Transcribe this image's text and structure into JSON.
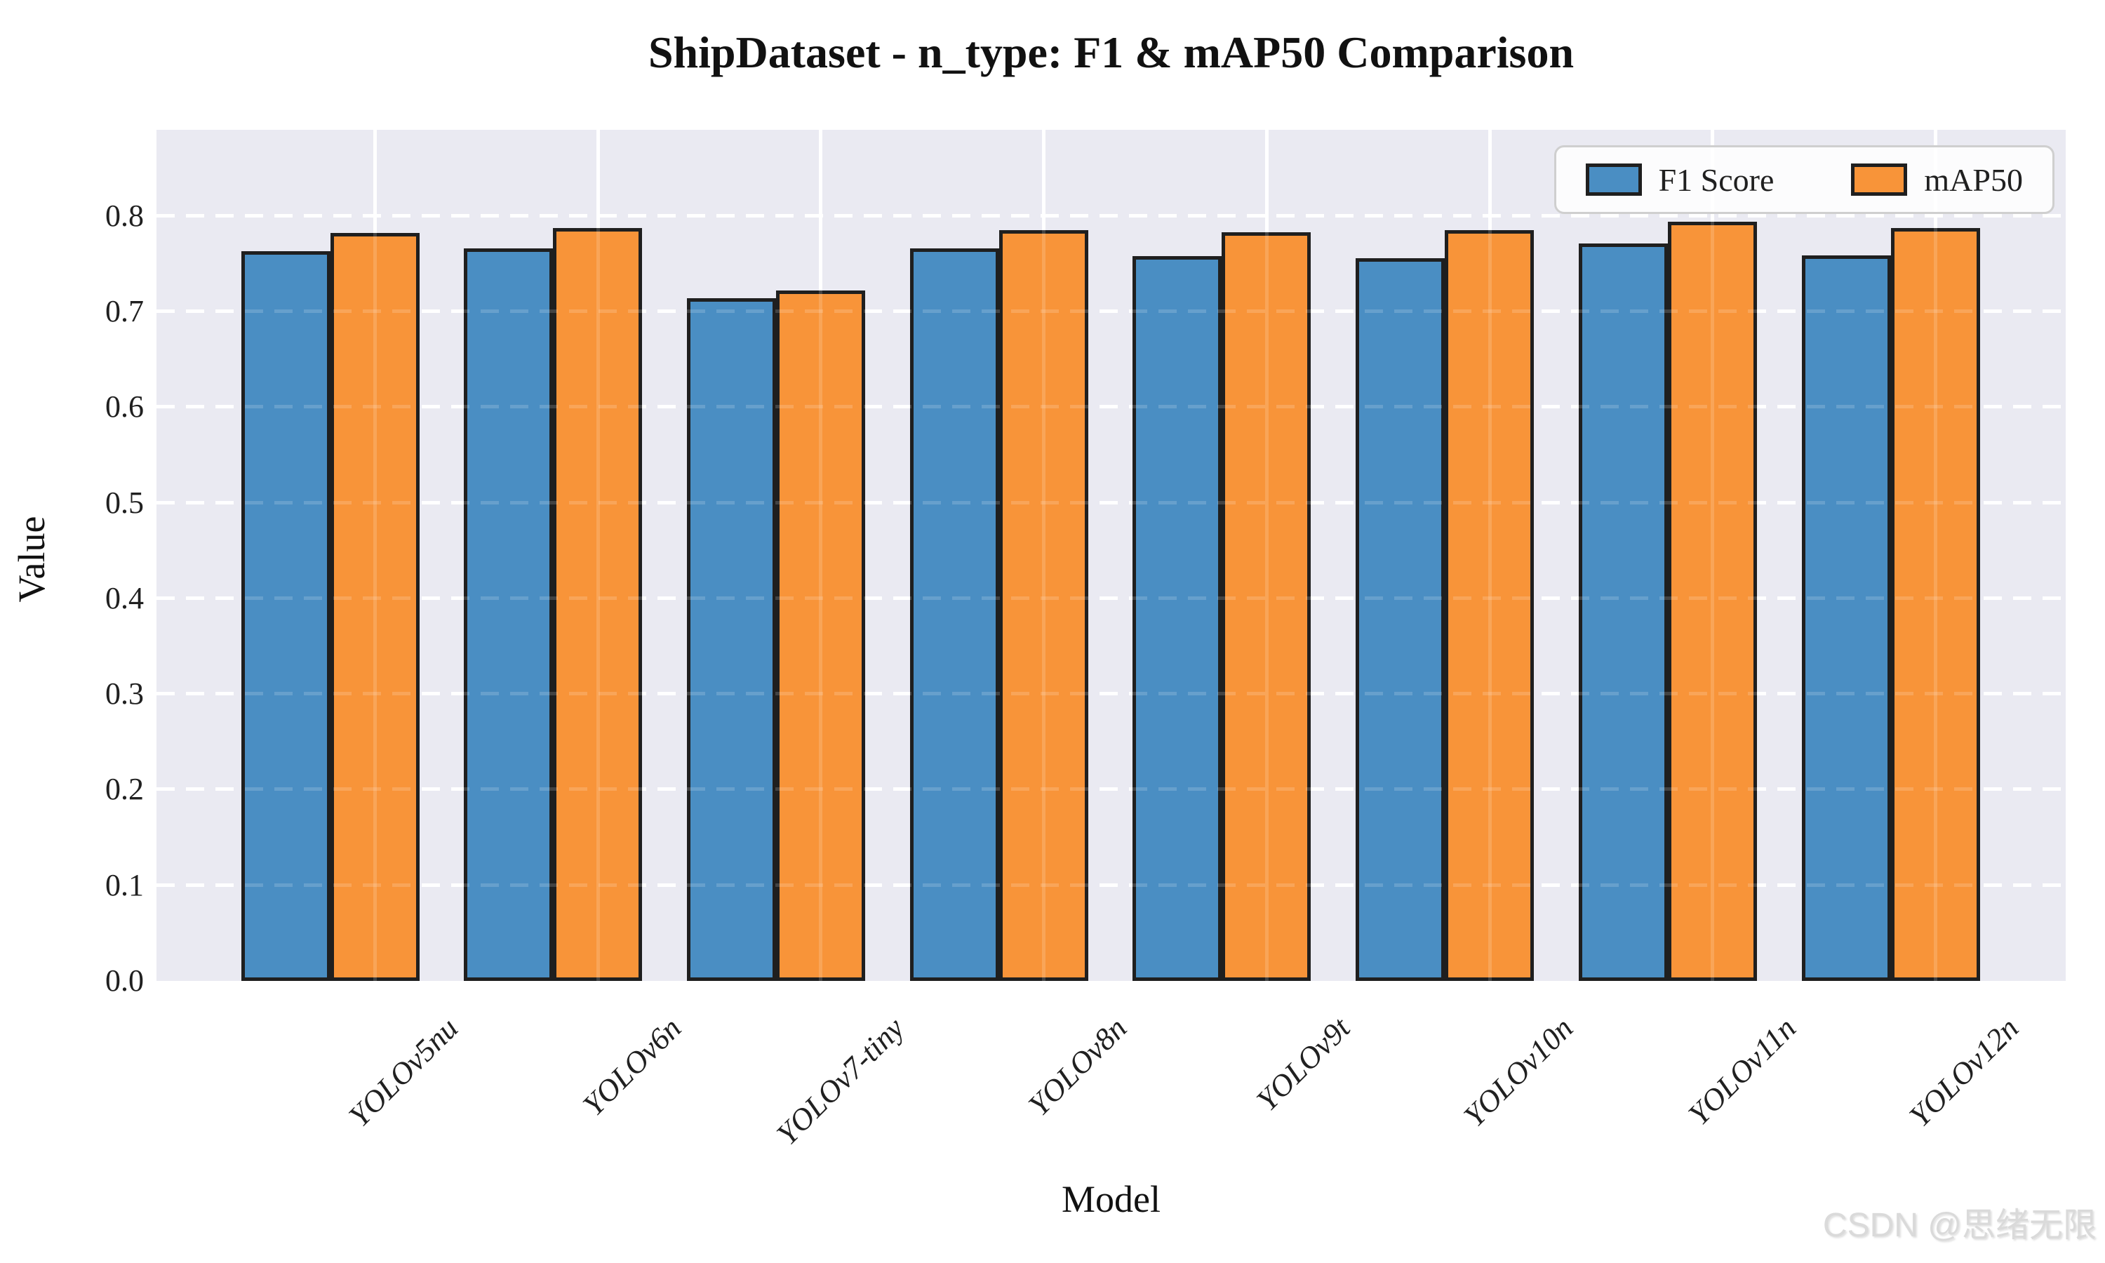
{
  "title": "ShipDataset - n_type: F1 & mAP50 Comparison",
  "watermark": "CSDN @思绪无限",
  "colors": {
    "f1_bar": "#4a8ec3",
    "map50_bar": "#f89439",
    "bar_edge": "#1f1f1f",
    "plot_background": "#eaeaf2",
    "gridline": "#ffffff"
  },
  "chart_data": {
    "type": "bar",
    "title": "ShipDataset - n_type: F1 & mAP50 Comparison",
    "xlabel": "Model",
    "ylabel": "Value",
    "categories": [
      "YOLOv5nu",
      "YOLOv6n",
      "YOLOv7-tiny",
      "YOLOv8n",
      "YOLOv9t",
      "YOLOv10n",
      "YOLOv11n",
      "YOLOv12n"
    ],
    "series": [
      {
        "name": "F1 Score",
        "color": "#4a8ec3",
        "values": [
          0.763,
          0.766,
          0.714,
          0.766,
          0.758,
          0.756,
          0.771,
          0.759
        ]
      },
      {
        "name": "mAP50",
        "color": "#f89439",
        "values": [
          0.782,
          0.787,
          0.722,
          0.785,
          0.783,
          0.785,
          0.794,
          0.787
        ]
      }
    ],
    "ylim": [
      0,
      0.89
    ],
    "yticks": [
      "0.0",
      "0.1",
      "0.2",
      "0.3",
      "0.4",
      "0.5",
      "0.6",
      "0.7",
      "0.8"
    ],
    "grid": "horizontal dashed white, vertical solid white",
    "legend_position": "upper right",
    "xticklabel_rotation": 45
  }
}
